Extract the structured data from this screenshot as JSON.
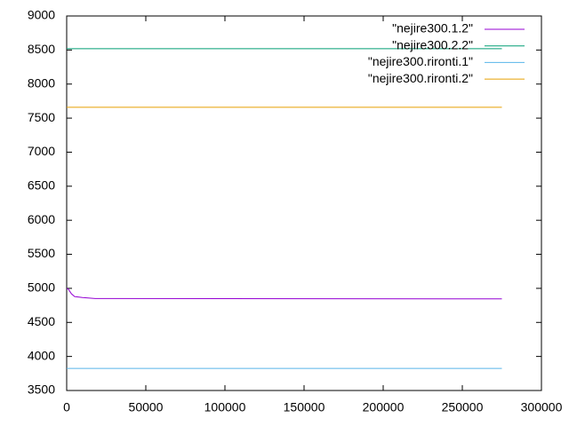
{
  "chart_data": {
    "type": "line",
    "series": [
      {
        "name": "\"nejire300.1.2\"",
        "color": "#9400d3",
        "x": [
          0,
          1000,
          3000,
          5000,
          10000,
          18000,
          275000
        ],
        "values": [
          5000,
          4990,
          4920,
          4880,
          4865,
          4850,
          4845
        ]
      },
      {
        "name": "\"nejire300.2.2\"",
        "color": "#009e73",
        "x": [
          0,
          275000
        ],
        "values": [
          8520,
          8520
        ]
      },
      {
        "name": "\"nejire300.rironti.1\"",
        "color": "#56b4e9",
        "x": [
          0,
          275000
        ],
        "values": [
          3825,
          3825
        ]
      },
      {
        "name": "\"nejire300.rironti.2\"",
        "color": "#e69f00",
        "x": [
          0,
          275000
        ],
        "values": [
          7660,
          7660
        ]
      }
    ],
    "xlim": [
      0,
      300000
    ],
    "ylim": [
      3500,
      9000
    ],
    "xticks": [
      0,
      50000,
      100000,
      150000,
      200000,
      250000,
      300000
    ],
    "yticks": [
      3500,
      4000,
      4500,
      5000,
      5500,
      6000,
      6500,
      7000,
      7500,
      8000,
      8500,
      9000
    ],
    "legend": "top-right"
  }
}
